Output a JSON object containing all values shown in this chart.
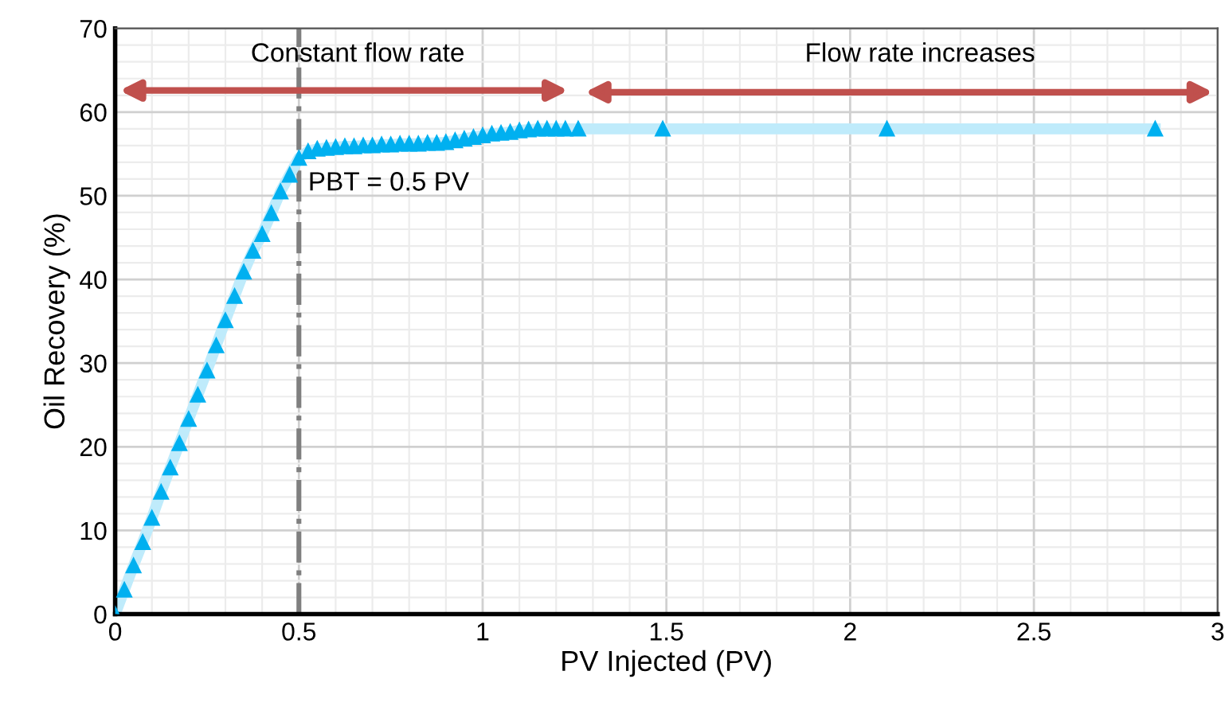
{
  "chart_data": {
    "type": "line",
    "xlabel": "PV Injected (PV)",
    "ylabel": "Oil Recovery (%)",
    "xlim": [
      0,
      3
    ],
    "ylim": [
      0,
      70
    ],
    "xticks": [
      0,
      0.5,
      1,
      1.5,
      2,
      2.5,
      3
    ],
    "yticks": [
      0,
      10,
      20,
      30,
      40,
      50,
      60,
      70
    ],
    "grid": true,
    "marker": "triangle",
    "line_style": "solid",
    "series": [
      {
        "color": "#00b0f0",
        "x": [
          0,
          0.025,
          0.05,
          0.075,
          0.1,
          0.125,
          0.15,
          0.175,
          0.2,
          0.225,
          0.25,
          0.275,
          0.3,
          0.325,
          0.35,
          0.375,
          0.4,
          0.425,
          0.45,
          0.475,
          0.5,
          0.525,
          0.55,
          0.575,
          0.6,
          0.625,
          0.65,
          0.675,
          0.7,
          0.725,
          0.75,
          0.775,
          0.8,
          0.825,
          0.85,
          0.875,
          0.9,
          0.925,
          0.95,
          0.975,
          1.0,
          1.025,
          1.05,
          1.075,
          1.1,
          1.125,
          1.15,
          1.175,
          1.2,
          1.225,
          1.26,
          1.49,
          2.1,
          2.83
        ],
        "values": [
          0,
          2.9,
          5.8,
          8.6,
          11.5,
          14.6,
          17.5,
          20.4,
          23.3,
          26.2,
          29.1,
          32.1,
          35.1,
          38,
          40.9,
          43.4,
          45.4,
          47.9,
          50.5,
          52.5,
          54.5,
          55.3,
          55.6,
          55.7,
          55.8,
          55.9,
          55.9,
          56.0,
          56.0,
          56.1,
          56.1,
          56.2,
          56.2,
          56.2,
          56.3,
          56.3,
          56.4,
          56.6,
          56.8,
          57.0,
          57.2,
          57.4,
          57.5,
          57.6,
          57.8,
          57.9,
          58.0,
          58.0,
          58.0,
          58.0,
          58.0,
          58.0,
          58.0,
          58.0
        ]
      }
    ],
    "ref_lines": [
      {
        "axis": "x",
        "value": 0.5,
        "label": "PBT = 0.5 PV",
        "color": "#7f7f7f",
        "line_style": "dashdot"
      }
    ],
    "annotations": [
      "Constant flow rate",
      "Flow rate increases"
    ]
  }
}
